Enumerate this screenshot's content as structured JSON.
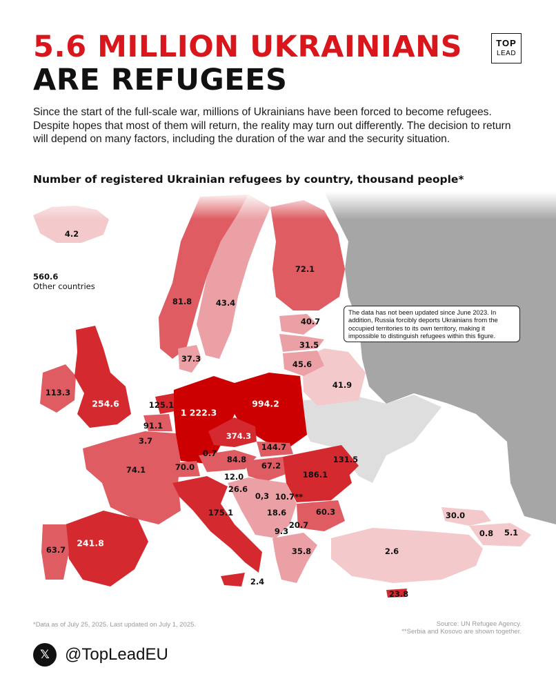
{
  "header": {
    "title_line1": "5.6 MILLION UKRAINIANS",
    "title_line2": "ARE REFUGEES",
    "intro": "Since the start of the full-scale war, millions of Ukrainians have been forced to become refugees. Despite hopes that most of them will return, the reality may turn out differently. The decision to return will depend on many factors, including the duration of the war and the security situation.",
    "subtitle": "Number of registered Ukrainian refugees by country, thousand people*"
  },
  "logo": {
    "top": "TOP",
    "bottom": "LEAD"
  },
  "colors": {
    "accent": "#d9161c",
    "darkest": "#cc0000",
    "dark": "#d42a2f",
    "mid": "#de5c62",
    "light": "#eaa0a4",
    "lightest": "#f3c9cb",
    "russia": "#a6a6a6",
    "neutral": "#dedede"
  },
  "map": {
    "values": {
      "iceland": "4.2",
      "norway": "81.8",
      "sweden": "43.4",
      "finland": "72.1",
      "denmark": "37.3",
      "latvia": "40.7",
      "lithuania": "31.5",
      "estonia_kaliningrad": "45.6",
      "belarus_region": "41.9",
      "ireland": "113.3",
      "uk": "254.6",
      "netherlands": "125.1",
      "belgium": "91.1",
      "luxembourg": "3.7",
      "germany": "1 222.3",
      "poland": "994.2",
      "czechia": "374.3",
      "slovakia": "144.7",
      "moldova": "131.5",
      "liechtenstein": "0.7",
      "austria": "84.8",
      "hungary": "67.2",
      "romania": "186.1",
      "france": "74.1",
      "switzerland": "70.0",
      "slovenia": "12.0",
      "croatia": "26.6",
      "bosnia": "0,3",
      "serbia_kosovo": "10.7**",
      "montenegro": "18.6",
      "north_macedonia": "20.7",
      "albania": "9.3",
      "bulgaria": "60.3",
      "italy": "175.1",
      "greece": "35.8",
      "turkey": "2.6",
      "georgia": "30.0",
      "armenia": "0.8",
      "azerbaijan": "5.1",
      "spain": "241.8",
      "portugal": "63.7",
      "malta": "2.4",
      "cyprus": "23.8"
    },
    "other_value": "560.6",
    "other_label": "Other countries"
  },
  "note": "The data has not been updated since June 2023. In addition, Russia forcibly deports Ukrainians from the occupied territories to its own territory, making it impossible to distinguish refugees within this figure.",
  "footer": {
    "left": "*Data as of July 25, 2025. Last updated on July 1, 2025.",
    "right_line1": "Source: UN Refugee Agency.",
    "right_line2": "**Serbia and Kosovo are shown together."
  },
  "social": {
    "icon": "x-logo-icon",
    "handle": "@TopLeadEU"
  }
}
